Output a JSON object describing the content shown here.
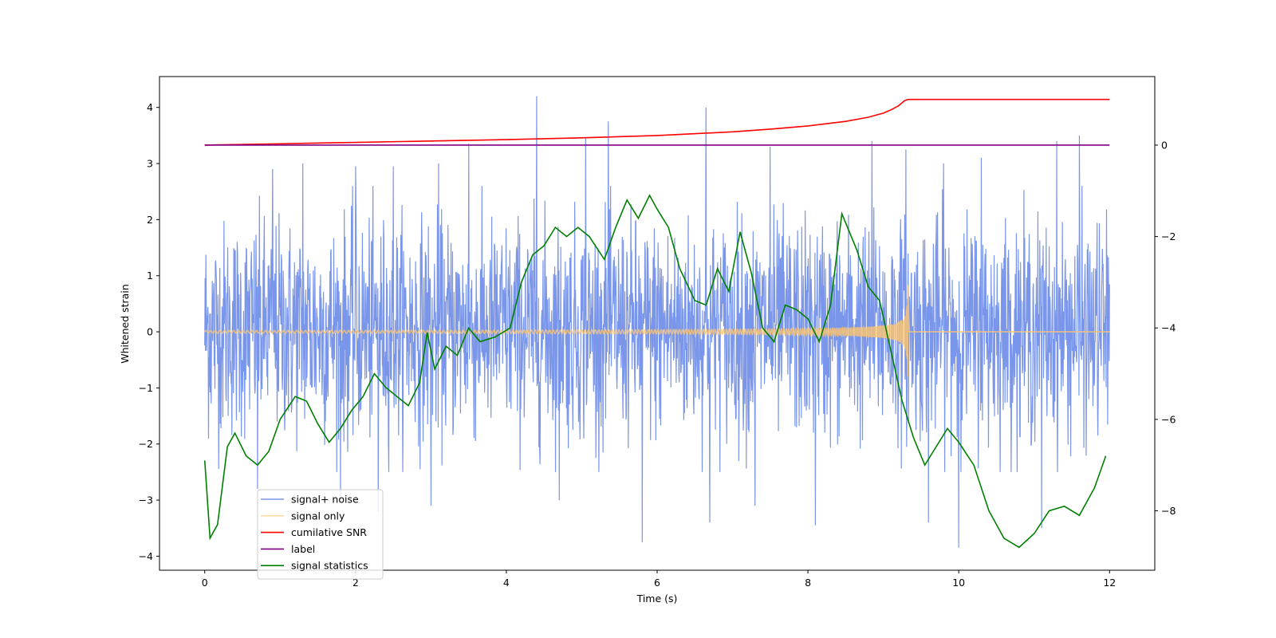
{
  "chart_data": {
    "type": "line",
    "xlabel": "Time (s)",
    "ylabel": "Whitened strain",
    "xlim": [
      -0.6,
      12.6
    ],
    "ylim": [
      -4.25,
      4.55
    ],
    "y2lim": [
      -9.3,
      1.5
    ],
    "xticks": [
      "0",
      "2",
      "4",
      "6",
      "8",
      "10",
      "12"
    ],
    "yticks": [
      "−4",
      "−3",
      "−2",
      "−1",
      "0",
      "1",
      "2",
      "3",
      "4"
    ],
    "y2ticks": [
      "−8",
      "−6",
      "−4",
      "−2",
      "0"
    ],
    "xtick_values": [
      0,
      2,
      4,
      6,
      8,
      10,
      12
    ],
    "ytick_values": [
      -4,
      -3,
      -2,
      -1,
      0,
      1,
      2,
      3,
      4
    ],
    "y2tick_values": [
      -8,
      -6,
      -4,
      -2,
      0
    ],
    "legend_position": "lower-left",
    "series": [
      {
        "name": "signal+ noise",
        "axis": "left",
        "color": "#4169e1",
        "kind": "noise",
        "t_range": [
          0,
          12
        ],
        "typical_range": [
          -2.5,
          2.6
        ],
        "peak_times": [
          0.9,
          1.3,
          2.0,
          2.5,
          3.1,
          3.5,
          4.4,
          5.05,
          5.35,
          6.65,
          7.5,
          8.85,
          9.3,
          9.8,
          10.3,
          11.3,
          11.6
        ],
        "peak_values": [
          2.9,
          3.0,
          2.95,
          2.95,
          3.0,
          3.35,
          4.2,
          3.45,
          3.75,
          4.0,
          3.3,
          3.4,
          3.25,
          3.0,
          3.1,
          3.4,
          3.5
        ],
        "trough_times": [
          0.7,
          1.8,
          2.3,
          3.0,
          4.7,
          5.8,
          6.7,
          7.3,
          8.1,
          9.6,
          10.0,
          11.1
        ],
        "trough_values": [
          -2.8,
          -3.0,
          -3.2,
          -3.1,
          -3.0,
          -3.75,
          -3.4,
          -3.1,
          -3.45,
          -3.4,
          -3.85,
          -3.5
        ]
      },
      {
        "name": "signal only",
        "axis": "left",
        "color": "#ffc66e",
        "kind": "chirp",
        "t_end": 12,
        "merger_time": 9.33,
        "peak_amplitude": 1.0
      },
      {
        "name": "cumilative SNR",
        "axis": "right",
        "color": "#ff0000",
        "t": [
          0,
          1,
          2,
          3,
          4,
          5,
          6,
          7,
          7.5,
          8,
          8.5,
          8.8,
          9.0,
          9.1,
          9.2,
          9.28,
          9.33,
          12.0
        ],
        "values": [
          0.0,
          0.03,
          0.06,
          0.09,
          0.12,
          0.16,
          0.21,
          0.29,
          0.35,
          0.42,
          0.52,
          0.61,
          0.7,
          0.77,
          0.86,
          0.97,
          1.0,
          1.0
        ]
      },
      {
        "name": "label",
        "axis": "right",
        "color": "#800080",
        "t": [
          0,
          12
        ],
        "values": [
          0,
          0
        ]
      },
      {
        "name": "signal statistics",
        "axis": "right",
        "color": "#008000",
        "t": [
          0,
          0.07,
          0.17,
          0.3,
          0.4,
          0.55,
          0.7,
          0.85,
          1.0,
          1.2,
          1.35,
          1.5,
          1.65,
          1.8,
          1.95,
          2.1,
          2.25,
          2.4,
          2.55,
          2.7,
          2.85,
          2.95,
          3.05,
          3.2,
          3.35,
          3.5,
          3.65,
          3.85,
          4.05,
          4.2,
          4.35,
          4.5,
          4.65,
          4.8,
          4.95,
          5.1,
          5.3,
          5.45,
          5.6,
          5.75,
          5.9,
          6.0,
          6.15,
          6.3,
          6.5,
          6.65,
          6.8,
          6.95,
          7.1,
          7.25,
          7.4,
          7.55,
          7.7,
          7.85,
          8.0,
          8.15,
          8.3,
          8.45,
          8.5,
          8.65,
          8.8,
          8.95,
          9.1,
          9.25,
          9.4,
          9.55,
          9.7,
          9.85,
          10.0,
          10.2,
          10.4,
          10.6,
          10.8,
          11.0,
          11.2,
          11.4,
          11.6,
          11.8,
          11.95
        ],
        "values": [
          -6.9,
          -8.6,
          -8.3,
          -6.6,
          -6.3,
          -6.8,
          -7.0,
          -6.7,
          -6.0,
          -5.5,
          -5.6,
          -6.1,
          -6.5,
          -6.2,
          -5.8,
          -5.5,
          -5.0,
          -5.3,
          -5.5,
          -5.7,
          -5.2,
          -4.1,
          -4.9,
          -4.4,
          -4.6,
          -4.0,
          -4.3,
          -4.2,
          -4.0,
          -3.0,
          -2.4,
          -2.2,
          -1.8,
          -2.0,
          -1.8,
          -2.0,
          -2.5,
          -1.8,
          -1.2,
          -1.6,
          -1.1,
          -1.4,
          -1.8,
          -2.7,
          -3.4,
          -3.5,
          -2.7,
          -3.2,
          -1.9,
          -2.8,
          -4.0,
          -4.3,
          -3.5,
          -3.6,
          -3.8,
          -4.3,
          -3.5,
          -1.5,
          -1.7,
          -2.3,
          -3.1,
          -3.4,
          -4.5,
          -5.6,
          -6.4,
          -7.0,
          -6.6,
          -6.2,
          -6.5,
          -7.0,
          -8.0,
          -8.6,
          -8.8,
          -8.5,
          -8.0,
          -7.9,
          -8.1,
          -7.5,
          -6.8
        ]
      }
    ]
  }
}
